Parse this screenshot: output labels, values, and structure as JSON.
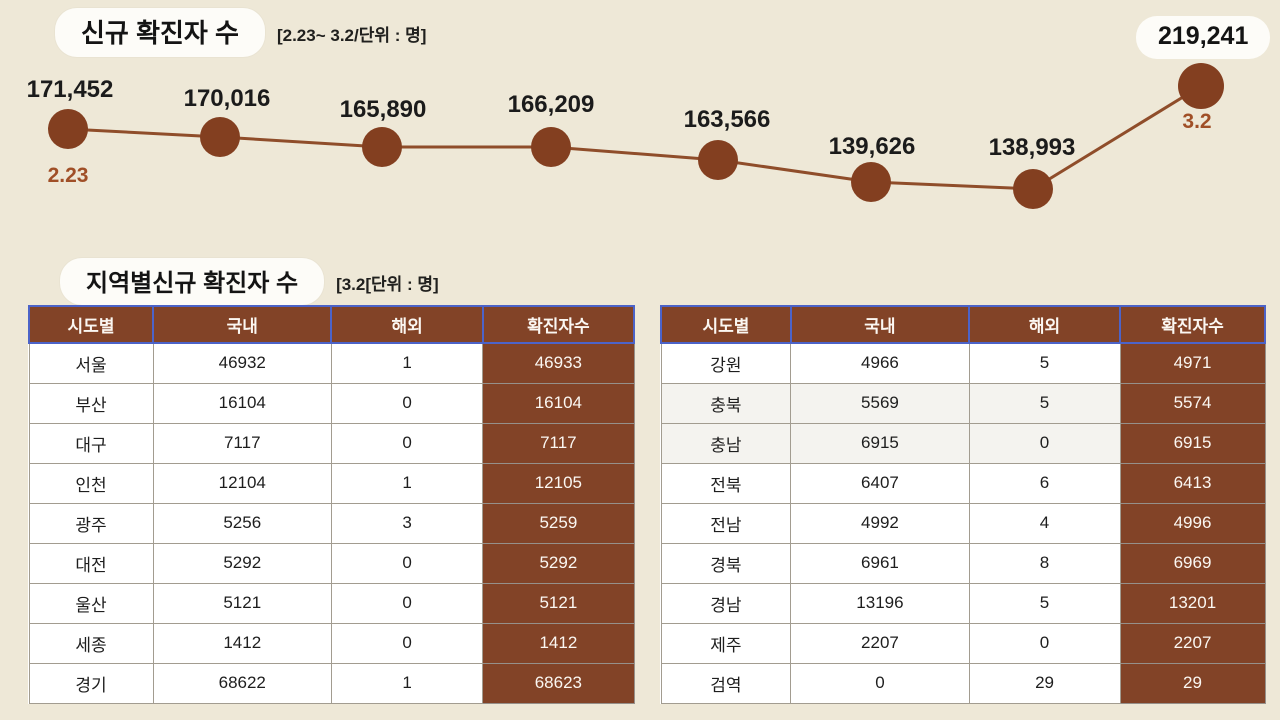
{
  "chart_section": {
    "title": "신규 확진자 수",
    "subtitle": "[2.23~ 3.2/단위 : 명]"
  },
  "chart_data": {
    "type": "line",
    "title": "신규 확진자 수",
    "subtitle_range_unit": "[2.23~ 3.2/단위 : 명]",
    "unit": "명",
    "x_range": "2.23 ~ 3.2",
    "x_labels_visible": [
      "2.23",
      "3.2"
    ],
    "values": [
      171452,
      170016,
      165890,
      166209,
      163566,
      139626,
      138993,
      219241
    ],
    "points": [
      {
        "label": "171,452",
        "x_label": "2.23"
      },
      {
        "label": "170,016"
      },
      {
        "label": "165,890"
      },
      {
        "label": "166,209"
      },
      {
        "label": "163,566"
      },
      {
        "label": "139,626"
      },
      {
        "label": "138,993"
      },
      {
        "label": "219,241",
        "x_label": "3.2",
        "emphasized": true
      }
    ],
    "legend": "none",
    "axes": "hidden",
    "line_color": "#8F4D2A",
    "dot_color": "#833F20",
    "label_color": "#1b1b1b",
    "date_label_color": "#A04F27"
  },
  "tables_section": {
    "title": "지역별신규 확진자 수",
    "subtitle": "[3.2[단위 : 명]"
  },
  "tables": {
    "columns": [
      "시도별",
      "국내",
      "해외",
      "확진자수"
    ],
    "left": {
      "rows": [
        [
          "서울",
          "46932",
          "1",
          "46933"
        ],
        [
          "부산",
          "16104",
          "0",
          "16104"
        ],
        [
          "대구",
          "7117",
          "0",
          "7117"
        ],
        [
          "인천",
          "12104",
          "1",
          "12105"
        ],
        [
          "광주",
          "5256",
          "3",
          "5259"
        ],
        [
          "대전",
          "5292",
          "0",
          "5292"
        ],
        [
          "울산",
          "5121",
          "0",
          "5121"
        ],
        [
          "세종",
          "1412",
          "0",
          "1412"
        ],
        [
          "경기",
          "68622",
          "1",
          "68623"
        ]
      ],
      "shaded_row_indices": []
    },
    "right": {
      "rows": [
        [
          "강원",
          "4966",
          "5",
          "4971"
        ],
        [
          "충북",
          "5569",
          "5",
          "5574"
        ],
        [
          "충남",
          "6915",
          "0",
          "6915"
        ],
        [
          "전북",
          "6407",
          "6",
          "6413"
        ],
        [
          "전남",
          "4992",
          "4",
          "4996"
        ],
        [
          "경북",
          "6961",
          "8",
          "6969"
        ],
        [
          "경남",
          "13196",
          "5",
          "13201"
        ],
        [
          "제주",
          "2207",
          "0",
          "2207"
        ],
        [
          "검역",
          "0",
          "29",
          "29"
        ]
      ],
      "shaded_row_indices": [
        1,
        2
      ]
    }
  },
  "colors": {
    "background": "#EEE8D7",
    "brown_accent": "#824327",
    "header_border_blue": "#4C63C8",
    "pill_background": "#FDFCF8"
  }
}
